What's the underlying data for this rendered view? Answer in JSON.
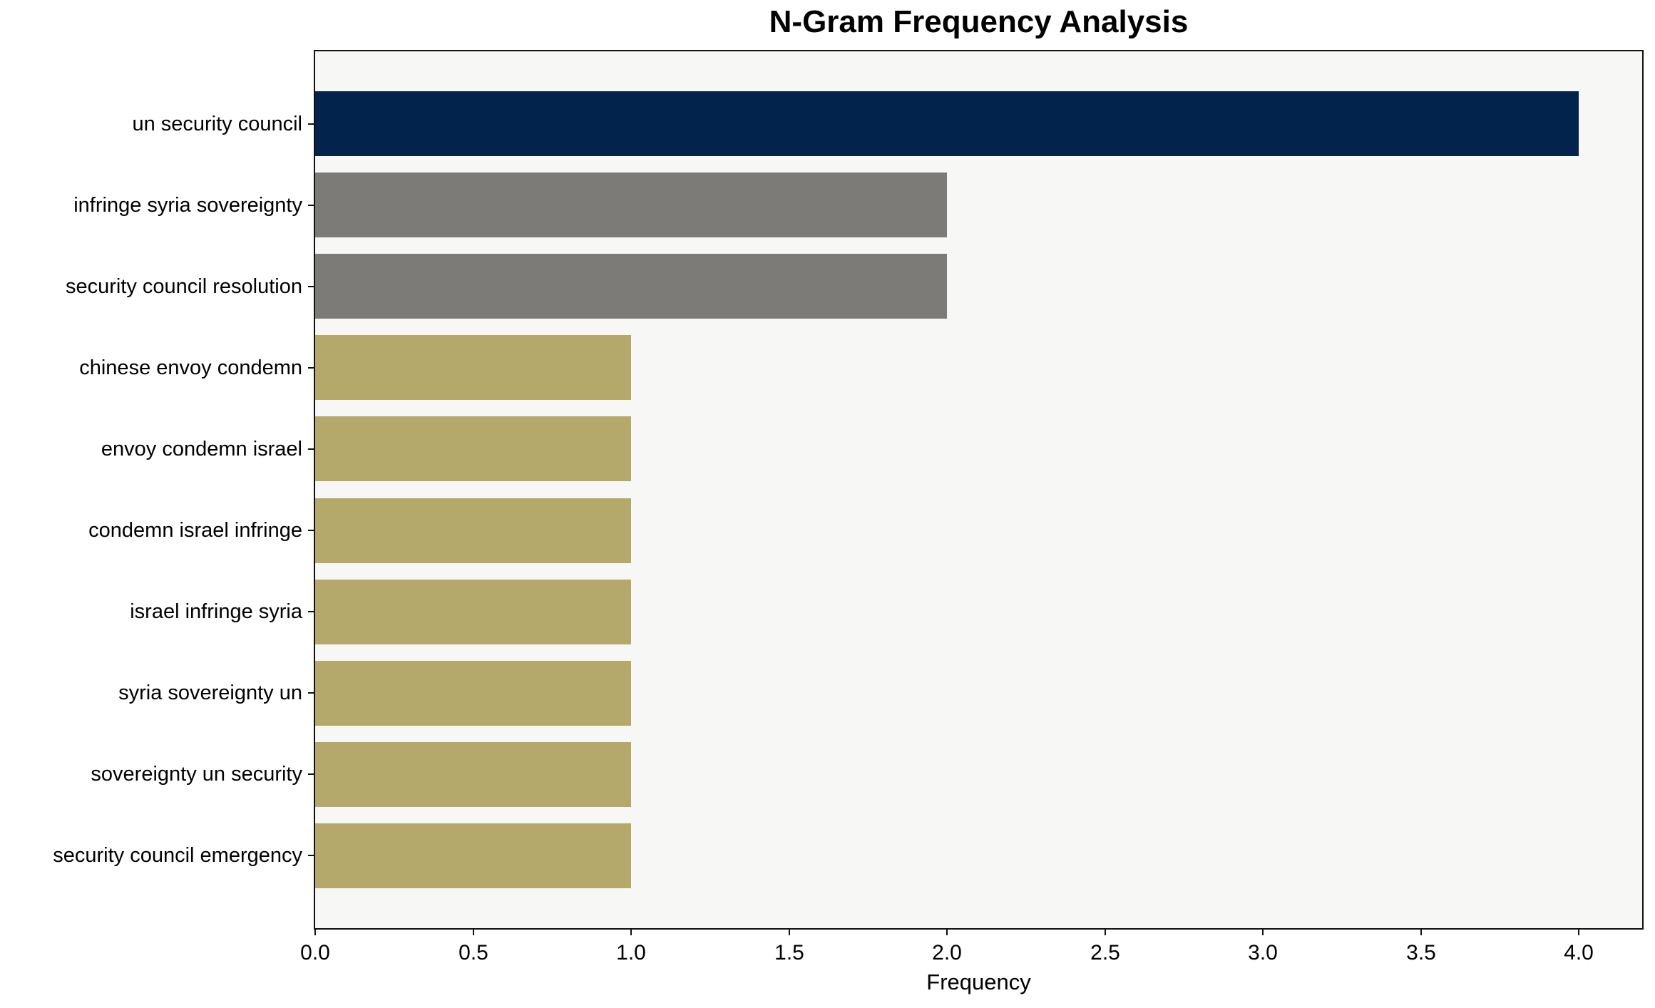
{
  "figure": {
    "background": "#ffffff",
    "plot_background": "#f7f7f6",
    "spine_color": "#111111",
    "text_color": "#000000"
  },
  "chart_data": {
    "type": "bar",
    "orientation": "horizontal",
    "title": "N-Gram Frequency Analysis",
    "xlabel": "Frequency",
    "ylabel": "",
    "categories": [
      "un security council",
      "infringe syria sovereignty",
      "security council resolution",
      "chinese envoy condemn",
      "envoy condemn israel",
      "condemn israel infringe",
      "israel infringe syria",
      "syria sovereignty un",
      "sovereignty un security",
      "security council emergency"
    ],
    "values": [
      4,
      2,
      2,
      1,
      1,
      1,
      1,
      1,
      1,
      1
    ],
    "bar_colors": [
      "#02234c",
      "#7d7b78",
      "#7d7b78",
      "#b4a96b",
      "#b4a96b",
      "#b4a96b",
      "#b4a96b",
      "#b4a96b",
      "#b4a96b",
      "#b4a96b"
    ],
    "xlim": [
      0,
      4.2
    ],
    "xticks": [
      0,
      0.5,
      1,
      1.5,
      2,
      2.5,
      3,
      3.5,
      4
    ],
    "xtick_labels": [
      "0.0",
      "0.5",
      "1.0",
      "1.5",
      "2.0",
      "2.5",
      "3.0",
      "3.5",
      "4.0"
    ],
    "grid": false,
    "legend": "none"
  }
}
